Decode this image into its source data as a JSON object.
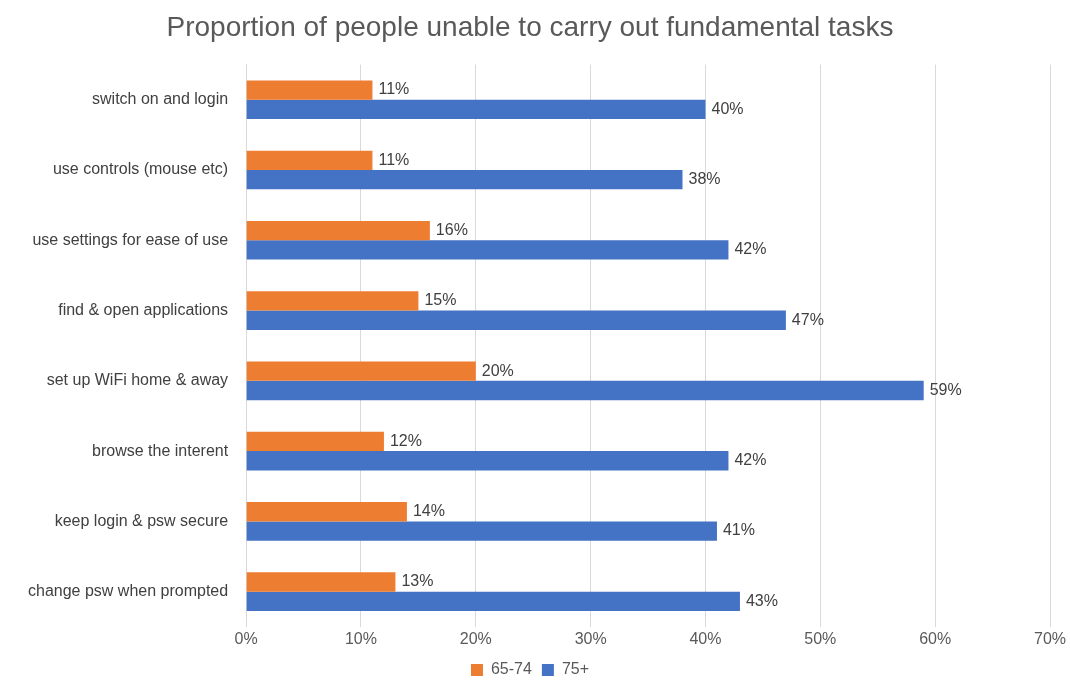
{
  "chart_data": {
    "type": "bar",
    "orientation": "horizontal",
    "title": "Proportion of people unable to carry out fundamental tasks",
    "categories": [
      "switch on and login",
      "use controls (mouse etc)",
      "use settings for ease of use",
      "find & open applications",
      "set up WiFi home & away",
      "browse the interent",
      "keep login & psw secure",
      "change psw when prompted"
    ],
    "series": [
      {
        "name": "65-74",
        "color": "#ed7d31",
        "values": [
          11,
          11,
          16,
          15,
          20,
          12,
          14,
          13
        ],
        "value_labels": [
          "11%",
          "11%",
          "16%",
          "15%",
          "20%",
          "12%",
          "14%",
          "13%"
        ]
      },
      {
        "name": "75+",
        "color": "#4472c4",
        "values": [
          40,
          38,
          42,
          47,
          59,
          42,
          41,
          43
        ],
        "value_labels": [
          "40%",
          "38%",
          "42%",
          "47%",
          "59%",
          "42%",
          "41%",
          "43%"
        ]
      }
    ],
    "xlim": [
      0,
      70
    ],
    "xticks": [
      {
        "value": 0,
        "label": "0%"
      },
      {
        "value": 10,
        "label": "10%"
      },
      {
        "value": 20,
        "label": "20%"
      },
      {
        "value": 30,
        "label": "30%"
      },
      {
        "value": 40,
        "label": "40%"
      },
      {
        "value": 50,
        "label": "50%"
      },
      {
        "value": 60,
        "label": "60%"
      },
      {
        "value": 70,
        "label": "70%"
      }
    ],
    "grid": "x",
    "legend": "bottom"
  }
}
